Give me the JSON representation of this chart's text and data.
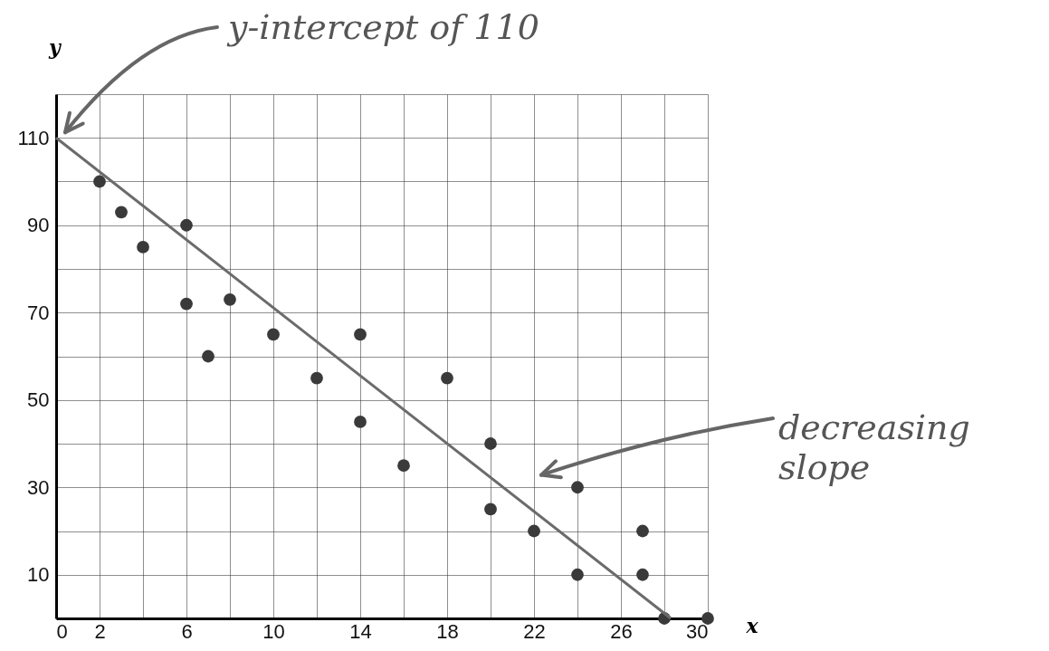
{
  "chart_data": {
    "type": "scatter",
    "xlabel": "x",
    "ylabel": "y",
    "xlim": [
      0,
      30
    ],
    "ylim": [
      0,
      120
    ],
    "xticks": [
      0,
      2,
      {
        "value": 4,
        "label": null
      },
      6,
      {
        "value": 8,
        "label": null
      },
      10,
      {
        "value": 12,
        "label": null
      },
      14,
      {
        "value": 16,
        "label": null
      },
      18,
      {
        "value": 20,
        "label": null
      },
      22,
      {
        "value": 24,
        "label": null
      },
      26,
      {
        "value": 28,
        "label": null
      },
      30
    ],
    "yticks": [
      {
        "value": 0,
        "label": null
      },
      10,
      {
        "value": 20,
        "label": null
      },
      30,
      {
        "value": 40,
        "label": null
      },
      50,
      {
        "value": 60,
        "label": null
      },
      70,
      {
        "value": 80,
        "label": null
      },
      90,
      {
        "value": 100,
        "label": null
      },
      110,
      {
        "value": 120,
        "label": null
      }
    ],
    "grid": true,
    "series": [
      {
        "color": "#3a3a3a",
        "marker": "circle",
        "x": [
          2,
          3,
          4,
          6,
          6,
          7,
          8,
          10,
          12,
          14,
          14,
          16,
          18,
          20,
          20,
          22,
          24,
          24,
          27,
          27,
          28,
          30
        ],
        "values": [
          100,
          93,
          85,
          90,
          72,
          60,
          73,
          65,
          55,
          65,
          45,
          35,
          55,
          40,
          25,
          20,
          30,
          10,
          20,
          10,
          0,
          0
        ]
      },
      {
        "type": "line",
        "color": "#6b6b6b",
        "x": [
          0,
          28.3
        ],
        "values": [
          110,
          0
        ]
      }
    ],
    "annotations": [
      "y-intercept of 110",
      "decreasing slope"
    ]
  }
}
